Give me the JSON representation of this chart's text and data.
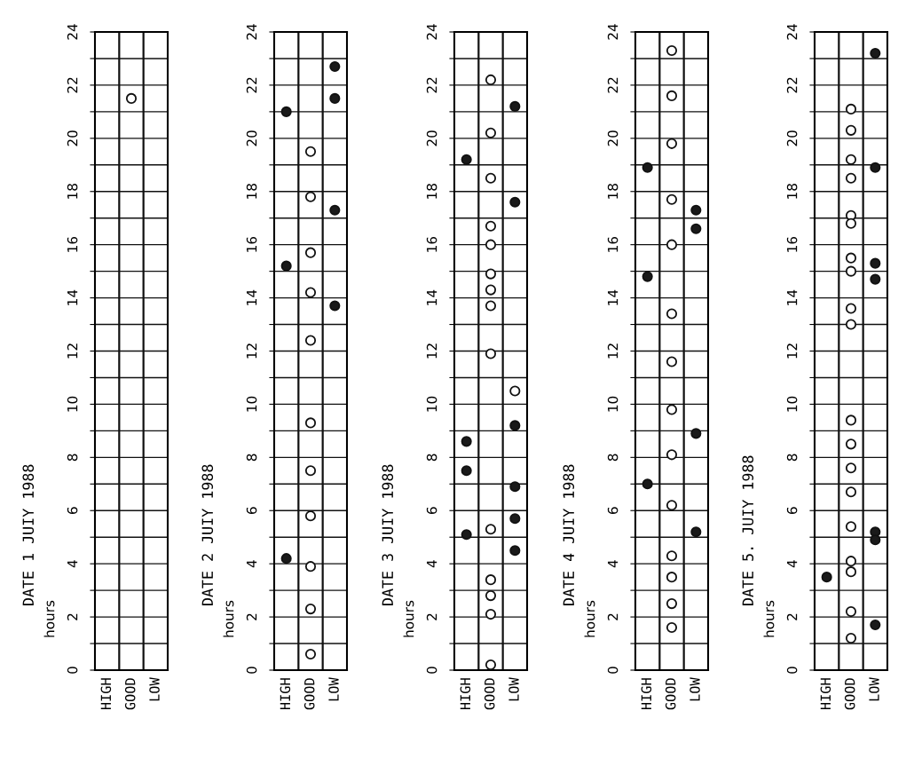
{
  "chart_data": [
    {
      "type": "scatter",
      "title": "DATE 1 JUIY 1988",
      "ylabel": "hours",
      "categories": [
        "HIGH",
        "GOOD",
        "LOW"
      ],
      "ylim": [
        0,
        24
      ],
      "yticks": [
        0,
        {
          "value": 1,
          "label": null
        },
        2,
        {
          "value": 3,
          "label": null
        },
        4,
        {
          "value": 5,
          "label": null
        },
        6,
        {
          "value": 7,
          "label": null
        },
        8,
        {
          "value": 9,
          "label": null
        },
        10,
        {
          "value": 11,
          "label": null
        },
        12,
        {
          "value": 13,
          "label": null
        },
        14,
        {
          "value": 15,
          "label": null
        },
        16,
        {
          "value": 17,
          "label": null
        },
        18,
        {
          "value": 19,
          "label": null
        },
        20,
        {
          "value": 21,
          "label": null
        },
        22,
        {
          "value": 23,
          "label": null
        },
        24
      ],
      "grid": true,
      "marker": "circle",
      "series": [
        {
          "color": "#ffffff",
          "x": [
            "GOOD"
          ],
          "values": [
            21.5
          ]
        }
      ]
    },
    {
      "type": "scatter",
      "title": "DATE 2 JUIY 1988",
      "ylabel": "hours",
      "categories": [
        "HIGH",
        "GOOD",
        "LOW"
      ],
      "ylim": [
        0,
        24
      ],
      "yticks": [
        0,
        {
          "value": 1,
          "label": null
        },
        2,
        {
          "value": 3,
          "label": null
        },
        4,
        {
          "value": 5,
          "label": null
        },
        6,
        {
          "value": 7,
          "label": null
        },
        8,
        {
          "value": 9,
          "label": null
        },
        10,
        {
          "value": 11,
          "label": null
        },
        12,
        {
          "value": 13,
          "label": null
        },
        14,
        {
          "value": 15,
          "label": null
        },
        16,
        {
          "value": 17,
          "label": null
        },
        18,
        {
          "value": 19,
          "label": null
        },
        20,
        {
          "value": 21,
          "label": null
        },
        22,
        {
          "value": 23,
          "label": null
        },
        24
      ],
      "grid": true,
      "marker": "circle",
      "series": [
        {
          "color": "#ffffff",
          "x": [
            "GOOD",
            "GOOD",
            "GOOD",
            "GOOD",
            "GOOD",
            "GOOD",
            "GOOD",
            "GOOD",
            "GOOD",
            "GOOD",
            "GOOD"
          ],
          "values": [
            19.5,
            17.8,
            15.7,
            14.2,
            12.4,
            9.3,
            7.5,
            5.8,
            3.9,
            2.3,
            0.6
          ]
        },
        {
          "color": "#1a1a1a",
          "x": [
            "HIGH",
            "HIGH",
            "HIGH",
            "LOW",
            "LOW",
            "LOW",
            "LOW"
          ],
          "values": [
            21.0,
            15.2,
            4.2,
            22.7,
            21.5,
            17.3,
            13.7
          ]
        }
      ]
    },
    {
      "type": "scatter",
      "title": "DATE 3 JUIY 1988",
      "ylabel": "hours",
      "categories": [
        "HIGH",
        "GOOD",
        "LOW"
      ],
      "ylim": [
        0,
        24
      ],
      "yticks": [
        0,
        {
          "value": 1,
          "label": null
        },
        2,
        {
          "value": 3,
          "label": null
        },
        4,
        {
          "value": 5,
          "label": null
        },
        6,
        {
          "value": 7,
          "label": null
        },
        8,
        {
          "value": 9,
          "label": null
        },
        10,
        {
          "value": 11,
          "label": null
        },
        12,
        {
          "value": 13,
          "label": null
        },
        14,
        {
          "value": 15,
          "label": null
        },
        16,
        {
          "value": 17,
          "label": null
        },
        18,
        {
          "value": 19,
          "label": null
        },
        20,
        {
          "value": 21,
          "label": null
        },
        22,
        {
          "value": 23,
          "label": null
        },
        24
      ],
      "grid": true,
      "marker": "circle",
      "series": [
        {
          "color": "#ffffff",
          "x": [
            "GOOD",
            "GOOD",
            "GOOD",
            "GOOD",
            "GOOD",
            "GOOD",
            "GOOD",
            "GOOD",
            "GOOD",
            "GOOD",
            "GOOD",
            "GOOD",
            "GOOD",
            "GOOD",
            "LOW"
          ],
          "values": [
            22.2,
            20.2,
            18.5,
            16.7,
            16.0,
            14.9,
            14.3,
            13.7,
            11.9,
            5.3,
            3.4,
            2.8,
            2.1,
            0.2,
            10.5
          ]
        },
        {
          "color": "#1a1a1a",
          "x": [
            "HIGH",
            "HIGH",
            "HIGH",
            "HIGH",
            "LOW",
            "LOW",
            "LOW",
            "LOW",
            "LOW",
            "LOW"
          ],
          "values": [
            19.2,
            8.6,
            7.5,
            5.1,
            21.2,
            17.6,
            9.2,
            6.9,
            5.7,
            4.5
          ]
        }
      ]
    },
    {
      "type": "scatter",
      "title": "DATE 4 JUIY 1988",
      "ylabel": "hours",
      "categories": [
        "HIGH",
        "GOOD",
        "LOW"
      ],
      "ylim": [
        0,
        24
      ],
      "yticks": [
        0,
        {
          "value": 1,
          "label": null
        },
        2,
        {
          "value": 3,
          "label": null
        },
        4,
        {
          "value": 5,
          "label": null
        },
        6,
        {
          "value": 7,
          "label": null
        },
        8,
        {
          "value": 9,
          "label": null
        },
        10,
        {
          "value": 11,
          "label": null
        },
        12,
        {
          "value": 13,
          "label": null
        },
        14,
        {
          "value": 15,
          "label": null
        },
        16,
        {
          "value": 17,
          "label": null
        },
        18,
        {
          "value": 19,
          "label": null
        },
        20,
        {
          "value": 21,
          "label": null
        },
        22,
        {
          "value": 23,
          "label": null
        },
        24
      ],
      "grid": true,
      "marker": "circle",
      "series": [
        {
          "color": "#ffffff",
          "x": [
            "GOOD",
            "GOOD",
            "GOOD",
            "GOOD",
            "GOOD",
            "GOOD",
            "GOOD",
            "GOOD",
            "GOOD",
            "GOOD",
            "GOOD",
            "GOOD",
            "GOOD",
            "GOOD"
          ],
          "values": [
            23.3,
            21.6,
            19.8,
            17.7,
            16.0,
            13.4,
            11.6,
            9.8,
            8.1,
            6.2,
            4.3,
            3.5,
            2.5,
            1.6
          ]
        },
        {
          "color": "#1a1a1a",
          "x": [
            "HIGH",
            "HIGH",
            "HIGH",
            "LOW",
            "LOW",
            "LOW",
            "LOW"
          ],
          "values": [
            18.9,
            14.8,
            7.0,
            17.3,
            16.6,
            8.9,
            5.2
          ]
        }
      ]
    },
    {
      "type": "scatter",
      "title": "DATE 5. JUIY 1988",
      "ylabel": "hours",
      "categories": [
        "HIGH",
        "GOOD",
        "LOW"
      ],
      "ylim": [
        0,
        24
      ],
      "yticks": [
        0,
        {
          "value": 1,
          "label": null
        },
        2,
        {
          "value": 3,
          "label": null
        },
        4,
        {
          "value": 5,
          "label": null
        },
        6,
        {
          "value": 7,
          "label": null
        },
        8,
        {
          "value": 9,
          "label": null
        },
        10,
        {
          "value": 11,
          "label": null
        },
        12,
        {
          "value": 13,
          "label": null
        },
        14,
        {
          "value": 15,
          "label": null
        },
        16,
        {
          "value": 17,
          "label": null
        },
        18,
        {
          "value": 19,
          "label": null
        },
        20,
        {
          "value": 21,
          "label": null
        },
        22,
        {
          "value": 23,
          "label": null
        },
        24
      ],
      "grid": true,
      "marker": "circle",
      "series": [
        {
          "color": "#ffffff",
          "x": [
            "GOOD",
            "GOOD",
            "GOOD",
            "GOOD",
            "GOOD",
            "GOOD",
            "GOOD",
            "GOOD",
            "GOOD",
            "GOOD",
            "GOOD",
            "GOOD",
            "GOOD",
            "GOOD",
            "GOOD",
            "GOOD",
            "GOOD",
            "GOOD",
            "GOOD"
          ],
          "values": [
            21.1,
            20.3,
            19.2,
            18.5,
            17.1,
            16.8,
            15.5,
            15.0,
            13.6,
            13.0,
            9.4,
            8.5,
            7.6,
            6.7,
            5.4,
            4.1,
            3.7,
            2.2,
            1.2
          ]
        },
        {
          "color": "#1a1a1a",
          "x": [
            "HIGH",
            "LOW",
            "LOW",
            "LOW",
            "LOW",
            "LOW",
            "LOW",
            "LOW"
          ],
          "values": [
            3.5,
            23.2,
            18.9,
            15.3,
            14.7,
            5.2,
            4.9,
            1.7
          ]
        }
      ]
    }
  ]
}
